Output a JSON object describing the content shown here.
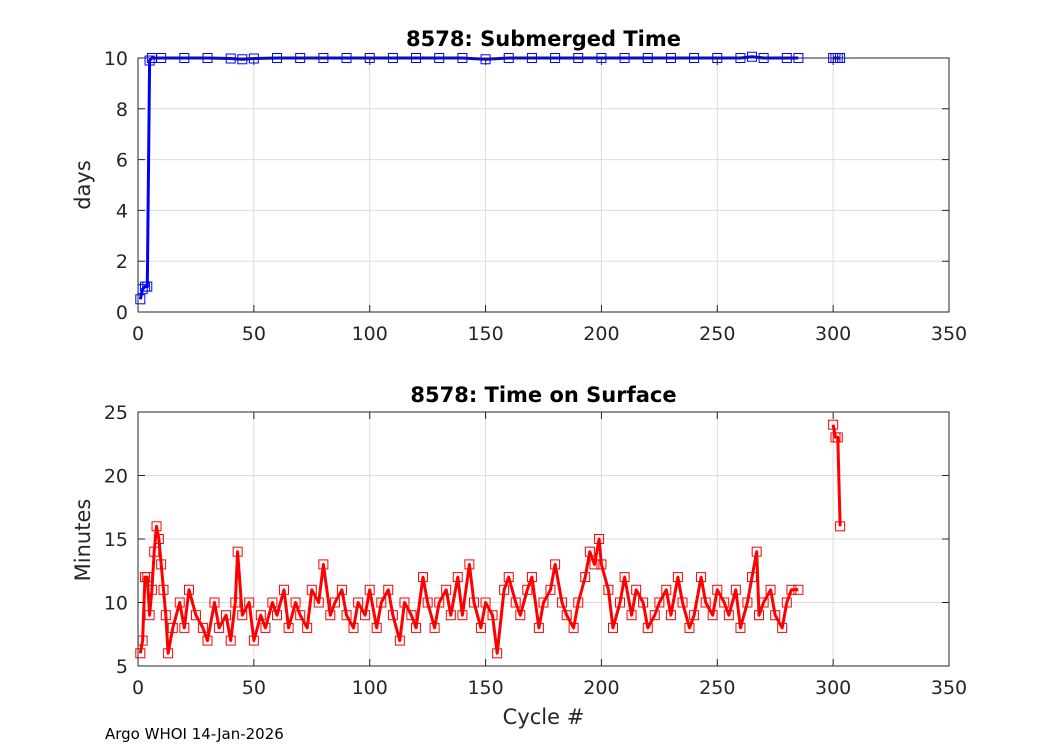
{
  "footer": "Argo WHOI 14-Jan-2026",
  "colors": {
    "top_series": "#0000ff",
    "bottom_series": "#ff0000",
    "grid": "#dcdcdc",
    "axis": "#262626"
  },
  "chart_data": [
    {
      "type": "line",
      "title": "8578: Submerged Time",
      "xlabel": "",
      "ylabel": "days",
      "xlim": [
        0,
        350
      ],
      "ylim": [
        0,
        10
      ],
      "xticks": [
        0,
        50,
        100,
        150,
        200,
        250,
        300,
        350
      ],
      "yticks": [
        0,
        2,
        4,
        6,
        8,
        10
      ],
      "grid": true,
      "marker": "square",
      "series": [
        {
          "name": "Submerged Time",
          "color": "#0000ff",
          "x": [
            1,
            2,
            3,
            4,
            5,
            6,
            10,
            20,
            30,
            40,
            45,
            50,
            60,
            70,
            80,
            90,
            100,
            110,
            120,
            130,
            140,
            150,
            160,
            170,
            180,
            190,
            200,
            210,
            220,
            230,
            240,
            250,
            260,
            265,
            270,
            280,
            285,
            null,
            300,
            301,
            302,
            303
          ],
          "y": [
            0.5,
            0.9,
            1.0,
            1.0,
            9.9,
            10.0,
            10.0,
            10.0,
            10.0,
            9.98,
            9.95,
            9.98,
            10.0,
            10.0,
            10.0,
            10.0,
            10.0,
            10.0,
            10.0,
            10.0,
            10.0,
            9.95,
            10.0,
            10.0,
            10.0,
            10.0,
            10.0,
            10.0,
            10.0,
            10.0,
            10.0,
            10.0,
            10.0,
            10.05,
            10.0,
            10.0,
            10.0,
            null,
            10.0,
            10.0,
            10.0,
            10.0
          ]
        }
      ]
    },
    {
      "type": "line",
      "title": "8578: Time on Surface",
      "xlabel": "Cycle #",
      "ylabel": "Minutes",
      "xlim": [
        0,
        350
      ],
      "ylim": [
        5,
        25
      ],
      "xticks": [
        0,
        50,
        100,
        150,
        200,
        250,
        300,
        350
      ],
      "yticks": [
        5,
        10,
        15,
        20,
        25
      ],
      "grid": true,
      "marker": "square",
      "series": [
        {
          "name": "Time on Surface",
          "color": "#ff0000",
          "x": [
            1,
            2,
            3,
            4,
            5,
            6,
            7,
            8,
            9,
            10,
            11,
            12,
            13,
            15,
            18,
            20,
            22,
            25,
            28,
            30,
            33,
            35,
            38,
            40,
            42,
            43,
            45,
            48,
            50,
            53,
            55,
            58,
            60,
            63,
            65,
            68,
            70,
            73,
            75,
            78,
            80,
            83,
            85,
            88,
            90,
            93,
            95,
            98,
            100,
            103,
            105,
            108,
            110,
            113,
            115,
            118,
            120,
            123,
            125,
            128,
            130,
            133,
            135,
            138,
            140,
            143,
            145,
            148,
            150,
            153,
            155,
            158,
            160,
            163,
            165,
            168,
            170,
            173,
            175,
            178,
            180,
            183,
            185,
            188,
            190,
            193,
            195,
            197,
            199,
            200,
            203,
            205,
            208,
            210,
            213,
            215,
            218,
            220,
            223,
            225,
            228,
            230,
            233,
            235,
            238,
            240,
            243,
            245,
            248,
            250,
            253,
            255,
            258,
            260,
            263,
            265,
            267,
            268,
            270,
            273,
            275,
            278,
            280,
            282,
            285,
            null,
            300,
            301,
            302,
            303
          ],
          "y": [
            6,
            7,
            12,
            12,
            9,
            11,
            14,
            16,
            15,
            13,
            11,
            9,
            6,
            8,
            10,
            8,
            11,
            9,
            8,
            7,
            10,
            8,
            9,
            7,
            10,
            14,
            9,
            10,
            7,
            9,
            8,
            10,
            9,
            11,
            8,
            10,
            9,
            8,
            11,
            10,
            13,
            9,
            10,
            11,
            9,
            8,
            10,
            9,
            11,
            8,
            10,
            11,
            9,
            7,
            10,
            9,
            8,
            12,
            10,
            8,
            10,
            11,
            9,
            12,
            9,
            13,
            10,
            8,
            10,
            9,
            6,
            11,
            12,
            10,
            9,
            11,
            12,
            8,
            10,
            11,
            13,
            10,
            9,
            8,
            10,
            12,
            14,
            13,
            15,
            13,
            11,
            8,
            10,
            12,
            9,
            11,
            10,
            8,
            9,
            10,
            11,
            9,
            12,
            10,
            8,
            9,
            12,
            10,
            9,
            11,
            10,
            9,
            11,
            8,
            10,
            12,
            14,
            9,
            10,
            11,
            9,
            8,
            10,
            11,
            11,
            null,
            24,
            23,
            23,
            16
          ]
        }
      ]
    }
  ]
}
